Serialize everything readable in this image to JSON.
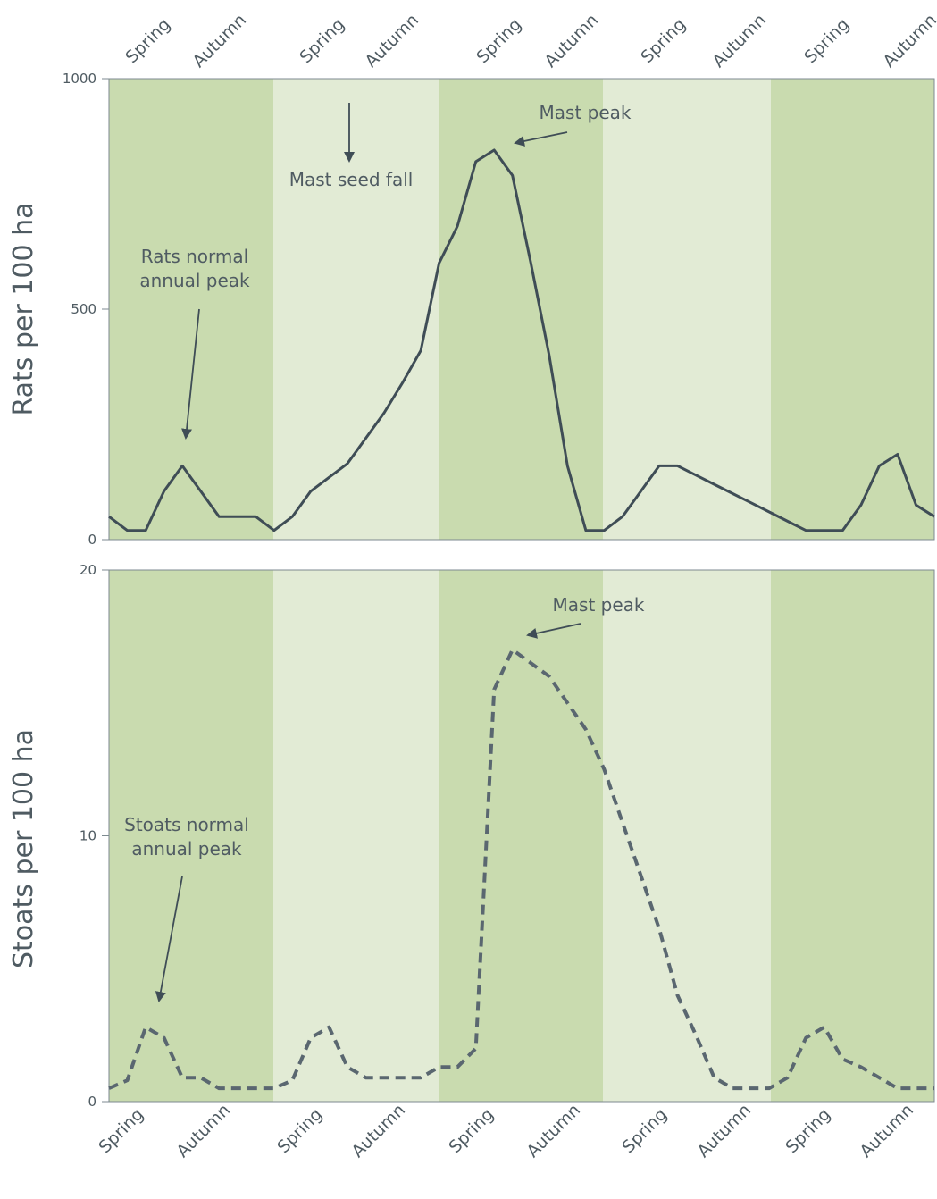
{
  "chart_data": [
    {
      "type": "line",
      "ylabel": "Rats per 100 ha",
      "ylim": [
        0,
        1000
      ],
      "yticks": [
        0,
        500,
        1000
      ],
      "seasons_top": [
        "Spring",
        "Autumn",
        "Spring",
        "Autumn",
        "Spring",
        "Autumn",
        "Spring",
        "Autumn",
        "Spring",
        "Autumn"
      ],
      "line_style": "solid",
      "line_color": "#3f4d56",
      "band_colors": [
        "#c9dbaf",
        "#e2ebd5"
      ],
      "x": [
        0,
        1,
        2,
        3,
        4,
        5,
        6,
        7,
        8,
        9,
        10,
        11,
        12,
        13,
        14,
        15,
        16,
        17,
        18,
        19,
        20,
        21,
        22,
        23,
        24,
        25,
        26,
        27,
        28,
        29,
        30,
        31,
        32,
        33,
        34,
        35,
        36,
        37,
        38,
        39,
        40,
        41,
        42,
        43,
        44,
        45
      ],
      "series": [
        {
          "values": [
            50,
            20,
            20,
            105,
            160,
            105,
            50,
            50,
            50,
            20,
            50,
            105,
            135,
            165,
            220,
            275,
            340,
            410,
            600,
            680,
            820,
            845,
            790,
            600,
            400,
            160,
            20,
            20,
            50,
            105,
            160,
            160,
            140,
            120,
            100,
            80,
            60,
            40,
            20,
            20,
            20,
            75,
            160,
            185,
            75,
            50
          ]
        }
      ],
      "annotations": [
        {
          "text_lines": [
            "Rats normal",
            "annual peak"
          ]
        },
        {
          "text_lines": [
            "Mast seed fall"
          ]
        },
        {
          "text_lines": [
            "Mast peak"
          ]
        }
      ]
    },
    {
      "type": "line",
      "ylabel": "Stoats per 100 ha",
      "ylim": [
        0,
        20
      ],
      "yticks": [
        0,
        10,
        20
      ],
      "seasons_bottom": [
        "Spring",
        "Autumn",
        "Spring",
        "Autumn",
        "Spring",
        "Autumn",
        "Spring",
        "Autumn",
        "Spring",
        "Autumn"
      ],
      "line_style": "dashed",
      "line_color": "#5a6770",
      "band_colors": [
        "#c9dbaf",
        "#e2ebd5"
      ],
      "x": [
        0,
        1,
        2,
        3,
        4,
        5,
        6,
        7,
        8,
        9,
        10,
        11,
        12,
        13,
        14,
        15,
        16,
        17,
        18,
        19,
        20,
        21,
        22,
        23,
        24,
        25,
        26,
        27,
        28,
        29,
        30,
        31,
        32,
        33,
        34,
        35,
        36,
        37,
        38,
        39,
        40,
        41,
        42,
        43,
        44,
        45
      ],
      "series": [
        {
          "values": [
            0.5,
            0.8,
            2.8,
            2.4,
            0.9,
            0.9,
            0.5,
            0.5,
            0.5,
            0.5,
            0.8,
            2.4,
            2.8,
            1.3,
            0.9,
            0.9,
            0.9,
            0.9,
            1.3,
            1.3,
            2.0,
            15.5,
            17.0,
            16.5,
            16.0,
            15.0,
            14.0,
            12.5,
            10.5,
            8.5,
            6.5,
            4.0,
            2.5,
            0.9,
            0.5,
            0.5,
            0.5,
            0.9,
            2.4,
            2.8,
            1.6,
            1.3,
            0.9,
            0.5,
            0.5,
            0.5
          ]
        }
      ],
      "annotations": [
        {
          "text_lines": [
            "Stoats normal",
            "annual peak"
          ]
        },
        {
          "text_lines": [
            "Mast peak"
          ]
        }
      ]
    }
  ]
}
